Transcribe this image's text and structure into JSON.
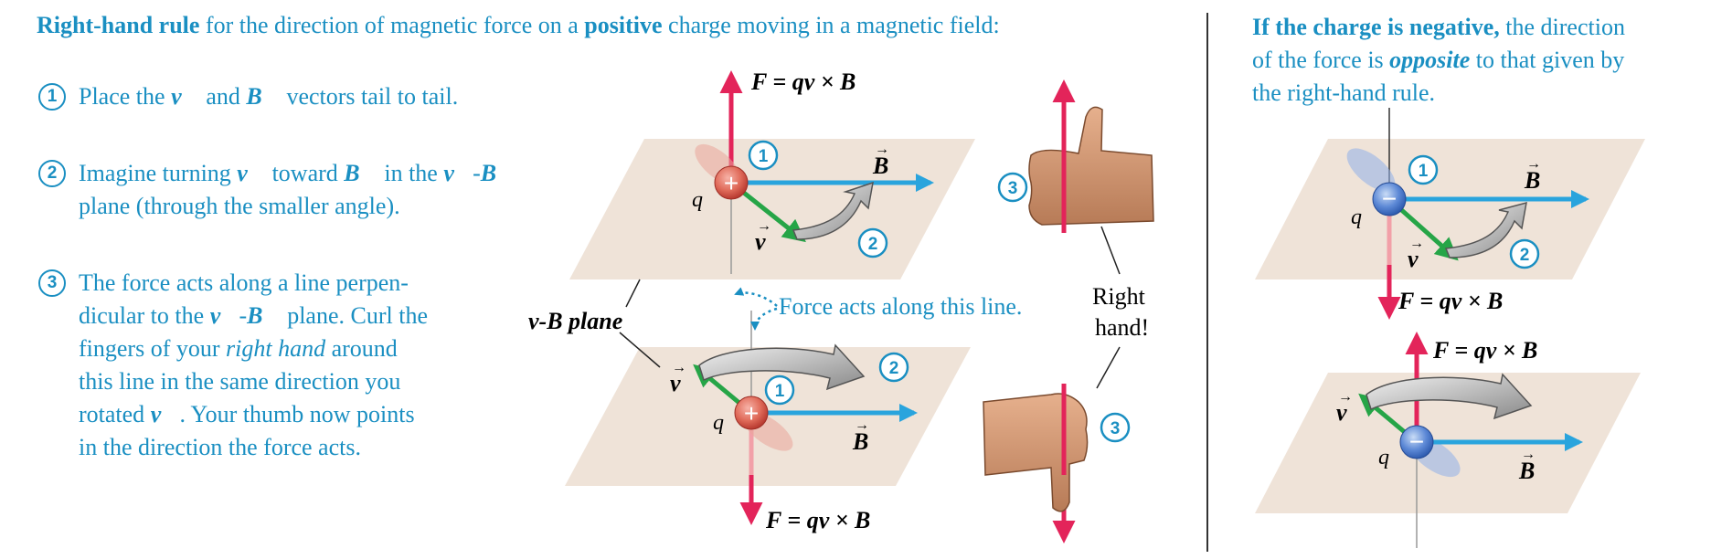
{
  "header": {
    "rule_bold": "Right-hand rule",
    "rule_mid": " for the direction of magnetic force on a ",
    "positive": "positive",
    "rule_end": " charge moving in a magnetic field:"
  },
  "steps": [
    {
      "num": "1",
      "lines": [
        "Place the v and B vectors tail to tail."
      ]
    },
    {
      "num": "2",
      "lines": [
        "Imagine turning v toward B in the v-B",
        "plane (through the smaller angle)."
      ]
    },
    {
      "num": "3",
      "lines": [
        "The force acts along a line perpen-",
        "dicular to the v-B plane. Curl the",
        "fingers of your right hand around",
        "this line in the same direction you",
        "rotated v. Your thumb now points",
        "in the direction the force acts."
      ]
    }
  ],
  "negative_note": {
    "bold": "If the charge is negative,",
    "line1_rest": " the direction",
    "line2_start": "of the force is ",
    "opposite": "opposite",
    "line2_end": " to that given by",
    "line3": "the right-hand rule."
  },
  "labels": {
    "force_eq": "F = qv × B",
    "v": "v",
    "B": "B",
    "q": "q",
    "plane": "v-B plane",
    "force_line": "Force acts along this line.",
    "right_hand_1": "Right",
    "right_hand_2": "hand!",
    "plus": "+",
    "minus": "−",
    "n1": "1",
    "n2": "2",
    "n3": "3"
  },
  "colors": {
    "text_blue": "#1a8fc2",
    "force_red": "#e3245a",
    "field_blue": "#29a4dd",
    "velocity_green": "#26a547",
    "plane_tan": "#efe3d8"
  }
}
